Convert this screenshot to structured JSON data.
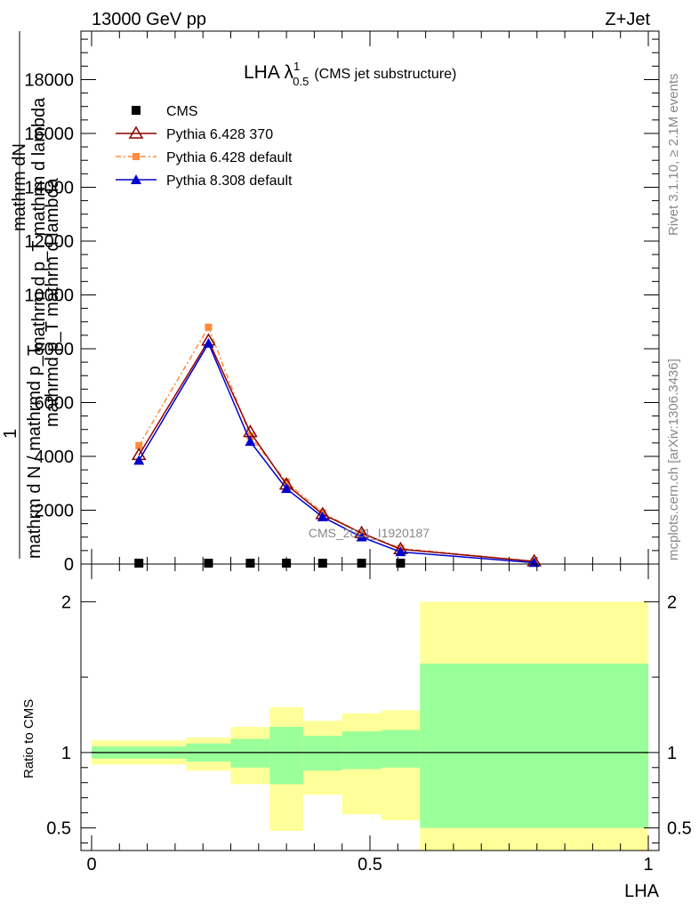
{
  "header": {
    "energy_label": "13000 GeV pp",
    "process_label": "Z+Jet"
  },
  "side_labels": {
    "rivet": "Rivet 3.1.10, ≥ 2.1M events",
    "mcplots": "mcplots.cern.ch [arXiv:1306.3436]"
  },
  "watermark": "CMS_2021_I1920187",
  "colors": {
    "pythia6_370": "#8b0000",
    "pythia6_default": "#ff8c3a",
    "pythia8_default": "#0000cc",
    "band_inner": "#99ff99",
    "band_outer": "#ffff99"
  },
  "chart_data": [
    {
      "type": "line",
      "title": "LHA λ",
      "title_superscript": "1",
      "title_subscript": "0.5",
      "title_note": "(CMS jet substructure)",
      "ylabel_main": "mathrm dN",
      "ylabel_sub": "mathrm d p_T mathrm d lambda",
      "ylabel_prefix": "1",
      "ylabel_den": "mathrm d N / mathrmd p_T",
      "ylabel_den_dup": "mathrmd p_T mathrm d lambda",
      "ylim": [
        0,
        19800
      ],
      "xlim": [
        0,
        1
      ],
      "y_ticks": [
        {
          "value": 0,
          "label": "0"
        },
        {
          "value": 2000,
          "label": "2000"
        },
        {
          "value": 4000,
          "label": "4000"
        },
        {
          "value": 6000,
          "label": "6000"
        },
        {
          "value": 8000,
          "label": "8000"
        },
        {
          "value": 10000,
          "label": "10000"
        },
        {
          "value": 12000,
          "label": "12000"
        },
        {
          "value": 14000,
          "label": "14000"
        },
        {
          "value": 16000,
          "label": "16000"
        },
        {
          "value": 18000,
          "label": "18000"
        }
      ],
      "legend_position": "top-left",
      "series": [
        {
          "name": "CMS",
          "marker": "square",
          "x": [
            0.085,
            0.21,
            0.285,
            0.35,
            0.415,
            0.485,
            0.555
          ],
          "y": [
            0,
            0,
            0,
            0,
            0,
            0,
            0
          ]
        },
        {
          "name": "Pythia 6.428 370",
          "marker": "open-triangle",
          "x": [
            0.085,
            0.21,
            0.285,
            0.35,
            0.415,
            0.485,
            0.555,
            0.795
          ],
          "y": [
            4050,
            8300,
            4900,
            2950,
            1850,
            1150,
            550,
            100
          ]
        },
        {
          "name": "Pythia 6.428 default",
          "marker": "square",
          "x": [
            0.085,
            0.21,
            0.285,
            0.35,
            0.415,
            0.485,
            0.555,
            0.795
          ],
          "y": [
            4400,
            8800,
            4750,
            3050,
            1900,
            1150,
            580,
            100
          ]
        },
        {
          "name": "Pythia 8.308 default",
          "marker": "triangle",
          "x": [
            0.085,
            0.21,
            0.285,
            0.35,
            0.415,
            0.485,
            0.555,
            0.795
          ],
          "y": [
            3850,
            8200,
            4550,
            2800,
            1750,
            1000,
            450,
            50
          ]
        }
      ]
    },
    {
      "type": "area",
      "ylabel": "Ratio to CMS",
      "xlabel": "LHA",
      "xlim": [
        0,
        1
      ],
      "ylim": [
        0.35,
        2.25
      ],
      "reference_line": 1,
      "x_ticks": [
        {
          "value": 0,
          "label": "0"
        },
        {
          "value": 0.5,
          "label": "0.5"
        },
        {
          "value": 1,
          "label": "1"
        }
      ],
      "y_ticks": [
        {
          "value": 0.5,
          "label": "0.5"
        },
        {
          "value": 1,
          "label": "1"
        },
        {
          "value": 2,
          "label": "2"
        }
      ],
      "bands": {
        "bin_edges": [
          0,
          0.17,
          0.25,
          0.32,
          0.38,
          0.45,
          0.52,
          0.59,
          1.0
        ],
        "inner_low": [
          0.96,
          0.94,
          0.9,
          0.79,
          0.88,
          0.89,
          0.9,
          0.5
        ],
        "inner_high": [
          1.04,
          1.06,
          1.09,
          1.17,
          1.11,
          1.14,
          1.15,
          1.59
        ],
        "outer_low": [
          0.92,
          0.88,
          0.79,
          0.48,
          0.72,
          0.59,
          0.55,
          0.35
        ],
        "outer_high": [
          1.08,
          1.1,
          1.17,
          1.3,
          1.21,
          1.26,
          1.28,
          2.0
        ]
      }
    }
  ]
}
